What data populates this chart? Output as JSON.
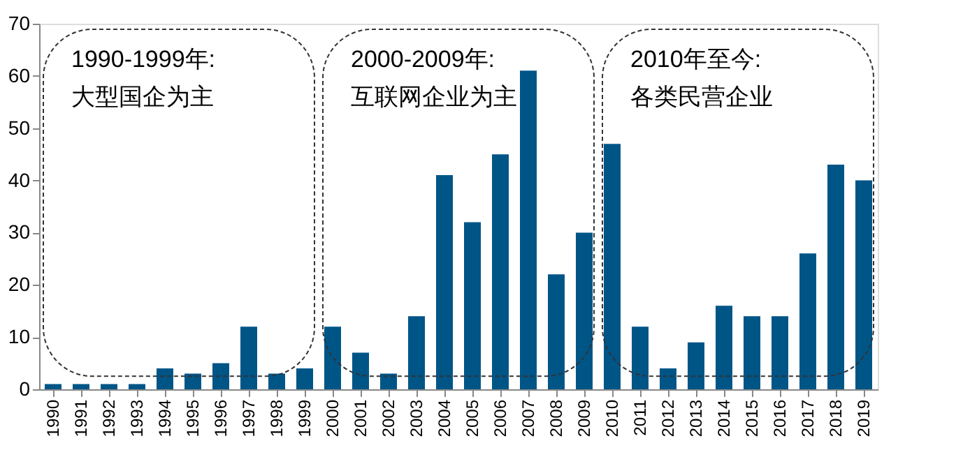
{
  "chart_data": {
    "type": "bar",
    "categories": [
      "1990",
      "1991",
      "1992",
      "1993",
      "1994",
      "1995",
      "1996",
      "1997",
      "1998",
      "1999",
      "2000",
      "2001",
      "2002",
      "2003",
      "2004",
      "2005",
      "2006",
      "2007",
      "2008",
      "2009",
      "2010",
      "2011",
      "2012",
      "2013",
      "2014",
      "2015",
      "2016",
      "2017",
      "2018",
      "2019"
    ],
    "values": [
      1,
      1,
      1,
      1,
      4,
      3,
      5,
      12,
      3,
      4,
      12,
      7,
      3,
      14,
      41,
      32,
      45,
      61,
      22,
      30,
      47,
      12,
      4,
      9,
      16,
      14,
      14,
      26,
      43,
      40
    ],
    "color": "#005587",
    "ylim": [
      0,
      70
    ],
    "yticks": [
      0,
      10,
      20,
      30,
      40,
      50,
      60,
      70
    ],
    "grid": false,
    "annotations": [
      "1990-1999年:\n大型国企为主",
      "2000-2009年:\n互联网企业为主",
      "2010年至今:\n各类民营企业"
    ]
  }
}
